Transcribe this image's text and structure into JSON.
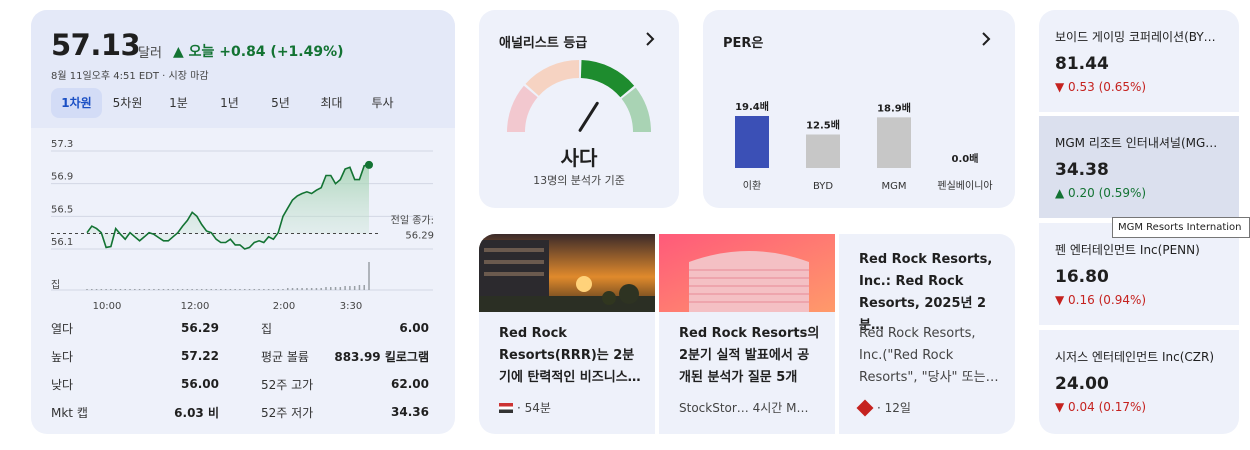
{
  "quote": {
    "price": "57.13",
    "unit": "달러",
    "change_text": "▲ 오늘 +0.84 (+1.49%)",
    "timestamp": "8월 11일오후 4:51 EDT · 시장 마감",
    "ranges": [
      "1차원",
      "5차원",
      "1분",
      "1년",
      "5년",
      "최대",
      "투사"
    ],
    "active_range": 0
  },
  "chart_data": {
    "type": "line",
    "y_ticks": [
      "57.3",
      "56.9",
      "56.5",
      "56.1"
    ],
    "ylim": [
      56.1,
      57.3
    ],
    "x_ticks": [
      "10:00",
      "12:00",
      "2:00",
      "3:30"
    ],
    "volume_label": "집",
    "prev_close_label": "전일 종가:",
    "prev_close_value": "56.29",
    "prev_close": 56.29,
    "colors": {
      "line": "#137333",
      "fill": "#cfe7d7",
      "volume": "#9aa0a6"
    },
    "series": [
      {
        "values": [
          56.3,
          56.38,
          56.35,
          56.3,
          56.12,
          56.13,
          56.35,
          56.28,
          56.22,
          56.3,
          56.25,
          56.2,
          56.25,
          56.3,
          56.28,
          56.24,
          56.2,
          56.2,
          56.25,
          56.3,
          56.38,
          56.45,
          56.55,
          56.5,
          56.4,
          56.32,
          56.3,
          56.22,
          56.18,
          56.18,
          56.22,
          56.15,
          56.15,
          56.1,
          56.12,
          56.18,
          56.2,
          56.18,
          56.25,
          56.22,
          56.3,
          56.5,
          56.6,
          56.7,
          56.75,
          56.78,
          56.8,
          56.78,
          56.82,
          56.85,
          57.0,
          57.0,
          56.9,
          56.95,
          57.08,
          57.1,
          56.95,
          56.95,
          57.12,
          57.13
        ]
      }
    ],
    "volume": [
      1,
      1,
      1,
      1,
      1,
      1,
      1,
      1,
      1,
      1,
      1,
      1,
      1,
      1,
      1,
      1,
      1,
      1,
      1,
      1,
      1,
      1,
      1,
      1,
      1,
      1,
      1,
      1,
      1,
      1,
      1,
      1,
      1,
      1,
      1,
      1,
      1,
      1,
      1,
      1,
      1,
      1,
      2,
      2,
      2,
      2,
      2,
      2,
      2,
      2,
      3,
      3,
      3,
      3,
      4,
      4,
      4,
      5,
      5,
      28
    ]
  },
  "stats": [
    {
      "label": "열다",
      "value": "56.29",
      "label2": "집",
      "value2": "6.00"
    },
    {
      "label": "높다",
      "value": "57.22",
      "label2": "평균 볼륨",
      "value2": "883.99 킬로그램"
    },
    {
      "label": "낮다",
      "value": "56.00",
      "label2": "52주 고가",
      "value2": "62.00"
    },
    {
      "label": "Mkt 캡",
      "value": "6.03 비",
      "label2": "52주 저가",
      "value2": "34.36"
    }
  ],
  "analyst": {
    "title": "애널리스트 등급",
    "rating": "사다",
    "basis": "13명의 분석가 기준",
    "gauge_value": 0.68,
    "colors": [
      "#f2c8cf",
      "#f6d3c2",
      "#1e8c2e",
      "#a9d3b4"
    ]
  },
  "per": {
    "title": "PER은",
    "categories": [
      "이환",
      "BYD",
      "MGM",
      "펜실베이니아"
    ],
    "values": [
      19.4,
      12.5,
      18.9,
      0.0
    ],
    "labels": [
      "19.4배",
      "12.5배",
      "18.9배",
      "0.0배"
    ],
    "colors": {
      "highlight": "#3b50b6",
      "other": "#c7c7c7"
    }
  },
  "news": [
    {
      "title": "Red Rock Resorts(RRR)는 2분기에 탄력적인 비즈니스…",
      "meta": "· 54분",
      "has_image": true
    },
    {
      "title": "Red Rock Resorts의 2분기 실적 발표에서 공개된 분석가 질문 5개",
      "meta": "StockStor…   4시간   M…",
      "has_image": true
    },
    {
      "title": "Red Rock Resorts, Inc.: Red Rock Resorts, 2025년 2분…",
      "snippet": "Red Rock Resorts, Inc.(\"Red Rock Resorts\", \"당사\" 또는…",
      "meta": "· 12일",
      "has_image": false
    }
  ],
  "peers": [
    {
      "name": "보이드 게이밍 코퍼레이션(BY…",
      "price": "81.44",
      "change": "▼ 0.53 (0.65%)",
      "direction": "down"
    },
    {
      "name": "MGM 리조트 인터내셔널(MG…",
      "price": "34.38",
      "change": "▲ 0.20 (0.59%)",
      "direction": "up"
    },
    {
      "name": "펜 엔터테인먼트 Inc(PENN)",
      "price": "16.80",
      "change": "▼ 0.16 (0.94%)",
      "direction": "down"
    },
    {
      "name": "시저스 엔터테인먼트 Inc(CZR)",
      "price": "24.00",
      "change": "▼ 0.04 (0.17%)",
      "direction": "down"
    }
  ],
  "tooltip": "MGM Resorts Internation"
}
